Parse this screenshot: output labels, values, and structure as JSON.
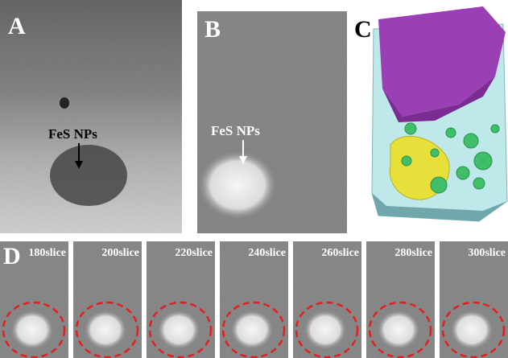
{
  "panels": {
    "a": {
      "label": "A",
      "annotation": "FeS NPs"
    },
    "b": {
      "label": "B",
      "annotation": "FeS NPs"
    },
    "c": {
      "label": "C"
    },
    "d": {
      "label": "D",
      "slices": [
        "180slice",
        "200slice",
        "220slice",
        "240slice",
        "260slice",
        "280slice",
        "300slice"
      ]
    }
  }
}
